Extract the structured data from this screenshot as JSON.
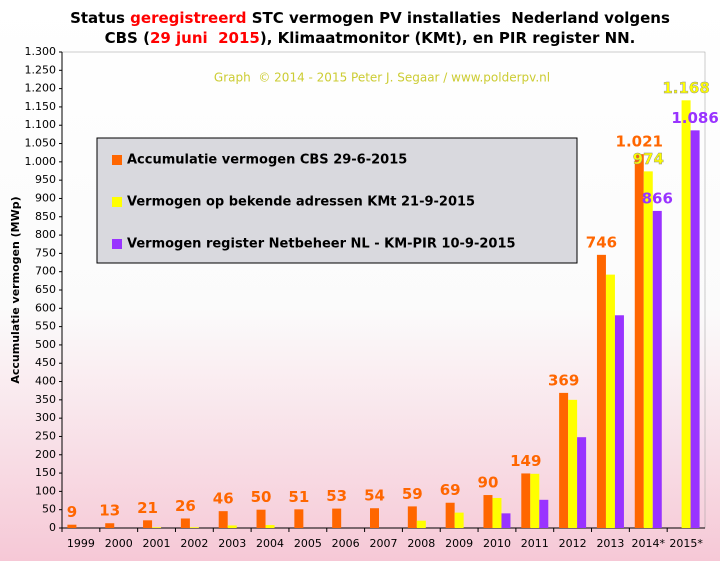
{
  "chart_data": {
    "type": "bar",
    "title": [
      [
        {
          "text": "Status "
        },
        {
          "text": "geregistreerd",
          "color": "#ff0000"
        },
        {
          "text": " STC vermogen PV installaties  Nederland volgens"
        }
      ],
      [
        {
          "text": "CBS ("
        },
        {
          "text": "29 juni  2015",
          "color": "#ff0000"
        },
        {
          "text": "), Klimaatmonitor (KMt), en PIR register NN."
        }
      ]
    ],
    "subtitle": "Graph  © 2014 - 2015 Peter J. Segaar / www.polderpv.nl",
    "ylabel": "Accumulatie vermogen (MWp)",
    "categories": [
      "1999",
      "2000",
      "2001",
      "2002",
      "2003",
      "2004",
      "2005",
      "2006",
      "2007",
      "2008",
      "2009",
      "2010",
      "2011",
      "2012",
      "2013",
      "2014*",
      "2015*"
    ],
    "series": [
      {
        "name": "Accumulatie vermogen CBS 29-6-2015",
        "color": "#ff6600",
        "values": [
          9,
          13,
          21,
          26,
          46,
          50,
          51,
          53,
          54,
          59,
          69,
          90,
          149,
          369,
          746,
          1021,
          null
        ],
        "value_labels": [
          "9",
          "13",
          "21",
          "26",
          "46",
          "50",
          "51",
          "53",
          "54",
          "59",
          "69",
          "90",
          "149",
          "369",
          "746",
          "1.021",
          null
        ]
      },
      {
        "name": "Vermogen op bekende adressen KMt 21-9-2015",
        "color": "#ffff00",
        "values": [
          null,
          null,
          2,
          2,
          7,
          8,
          null,
          null,
          null,
          20,
          42,
          82,
          148,
          350,
          692,
          974,
          1168
        ],
        "value_labels": [
          null,
          null,
          null,
          null,
          null,
          null,
          null,
          null,
          null,
          null,
          null,
          null,
          null,
          null,
          null,
          "974",
          "1.168"
        ]
      },
      {
        "name": "Vermogen register Netbeheer NL - KM-PIR 10-9-2015",
        "color": "#9933ff",
        "values": [
          null,
          null,
          null,
          null,
          null,
          null,
          null,
          null,
          null,
          null,
          null,
          40,
          77,
          248,
          581,
          866,
          1086
        ],
        "value_labels": [
          null,
          null,
          null,
          null,
          null,
          null,
          null,
          null,
          null,
          null,
          null,
          null,
          null,
          null,
          null,
          "866",
          "1.086"
        ]
      }
    ],
    "ylim": [
      0,
      1300
    ],
    "yticks": [
      0,
      50,
      100,
      150,
      200,
      250,
      300,
      350,
      400,
      450,
      500,
      550,
      600,
      650,
      700,
      750,
      800,
      850,
      900,
      950,
      {
        "value": 1000,
        "label": "1.000"
      },
      {
        "value": 1050,
        "label": "1.050"
      },
      {
        "value": 1100,
        "label": "1.100"
      },
      {
        "value": 1150,
        "label": "1.150"
      },
      {
        "value": 1200,
        "label": "1.200"
      },
      {
        "value": 1250,
        "label": "1.250"
      },
      {
        "value": 1300,
        "label": "1.300"
      }
    ],
    "grid": false,
    "legend": "upper left"
  }
}
